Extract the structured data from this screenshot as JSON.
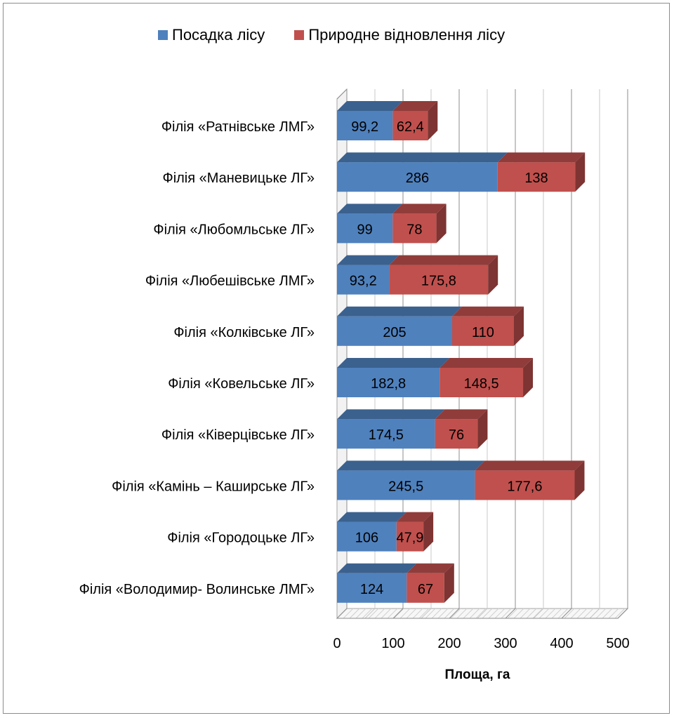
{
  "chart_data": {
    "type": "bar",
    "orientation": "horizontal",
    "stacked": true,
    "categories": [
      "Філія «Ратнівське ЛМГ»",
      "Філія «Маневицьке ЛГ»",
      "Філія «Любомльське ЛГ»",
      "Філія «Любешівське ЛМГ»",
      "Філія «Колківське ЛГ»",
      "Філія «Ковельське  ЛГ»",
      "Філія «Ківерцівське ЛГ»",
      "Філія «Камінь – Каширське ЛГ»",
      "Філія «Городоцьке ЛГ»",
      "Філія «Володимир-  Волинське ЛМГ»"
    ],
    "series": [
      {
        "name": "Посадка лісу",
        "color": "#4f81bd",
        "values": [
          99.2,
          286,
          99,
          93.2,
          205,
          182.8,
          174.5,
          245.5,
          106,
          124
        ],
        "labels": [
          "99,2",
          "286",
          "99",
          "93,2",
          "205",
          "182,8",
          "174,5",
          "245,5",
          "106",
          "124"
        ]
      },
      {
        "name": "Природне відновлення лісу",
        "color": "#c0504d",
        "values": [
          62.4,
          138,
          78,
          175.8,
          110,
          148.5,
          76,
          177.6,
          47.9,
          67
        ],
        "labels": [
          "62,4",
          "138",
          "78",
          "175,8",
          "110",
          "148,5",
          "76",
          "177,6",
          "47,9",
          "67"
        ]
      }
    ],
    "xlabel": "Площа, га",
    "xlim": [
      0,
      500
    ],
    "xticks": [
      "0",
      "100",
      "200",
      "300",
      "400",
      "500"
    ],
    "grid": true,
    "legend_position": "top"
  }
}
